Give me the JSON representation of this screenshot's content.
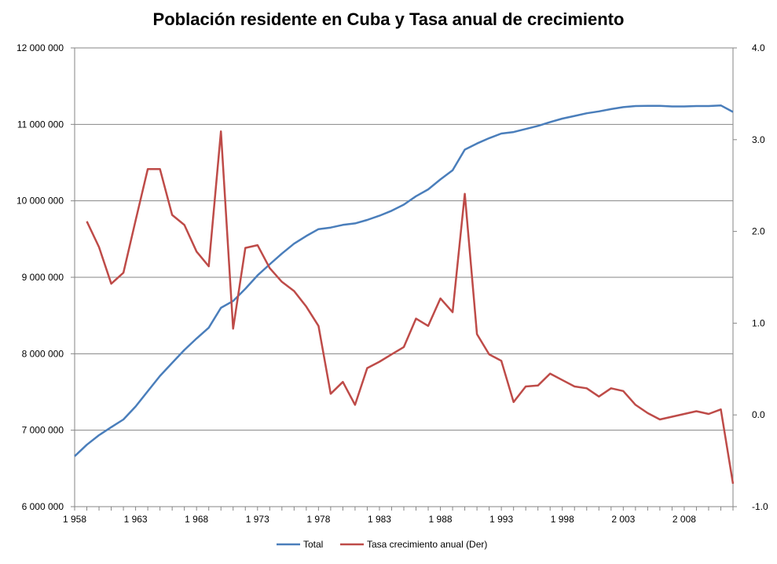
{
  "chart_data": {
    "type": "line",
    "title": "Población residente en Cuba  y Tasa anual de crecimiento",
    "x": [
      1958,
      1959,
      1960,
      1961,
      1962,
      1963,
      1964,
      1965,
      1966,
      1967,
      1968,
      1969,
      1970,
      1971,
      1972,
      1973,
      1974,
      1975,
      1976,
      1977,
      1978,
      1979,
      1980,
      1981,
      1982,
      1983,
      1984,
      1985,
      1986,
      1987,
      1988,
      1989,
      1990,
      1991,
      1992,
      1993,
      1994,
      1995,
      1996,
      1997,
      1998,
      1999,
      2000,
      2001,
      2002,
      2003,
      2004,
      2005,
      2006,
      2007,
      2008,
      2009,
      2010,
      2011,
      2012
    ],
    "xlim": [
      1958,
      2012
    ],
    "xticks": [
      1958,
      1963,
      1968,
      1973,
      1978,
      1983,
      1988,
      1993,
      1998,
      2003,
      2008
    ],
    "x_tick_labels": [
      "1 958",
      "1 963",
      "1 968",
      "1 973",
      "1 978",
      "1 983",
      "1 988",
      "1 993",
      "1 998",
      "2 003",
      "2 008"
    ],
    "y_left": {
      "ylim": [
        6000000,
        12000000
      ],
      "ticks": [
        6000000,
        7000000,
        8000000,
        9000000,
        10000000,
        11000000,
        12000000
      ],
      "tick_labels": [
        "6 000 000",
        "7 000 000",
        "8 000 000",
        "9 000 000",
        "10 000 000",
        "11 000 000",
        "12 000 000"
      ]
    },
    "y_right": {
      "ylim": [
        -1.0,
        4.0
      ],
      "ticks": [
        -1.0,
        0.0,
        1.0,
        2.0,
        3.0,
        4.0
      ],
      "tick_labels": [
        "-1.0",
        "0.0",
        "1.0",
        "2.0",
        "3.0",
        "4.0"
      ]
    },
    "series": [
      {
        "name": "Total",
        "axis": "left",
        "color": "#4a7ebb",
        "x": [
          1958,
          1959,
          1960,
          1961,
          1962,
          1963,
          1964,
          1965,
          1966,
          1967,
          1968,
          1969,
          1970,
          1971,
          1972,
          1973,
          1974,
          1975,
          1976,
          1977,
          1978,
          1979,
          1980,
          1981,
          1982,
          1983,
          1984,
          1985,
          1986,
          1987,
          1988,
          1989,
          1990,
          1991,
          1992,
          1993,
          1994,
          1995,
          1996,
          1997,
          1998,
          1999,
          2000,
          2001,
          2002,
          2003,
          2004,
          2005,
          2006,
          2007,
          2008,
          2009,
          2010,
          2011,
          2012
        ],
        "values": [
          6660000,
          6810000,
          6935000,
          7040000,
          7140000,
          7310000,
          7510000,
          7710000,
          7880000,
          8050000,
          8200000,
          8340000,
          8600000,
          8690000,
          8850000,
          9025000,
          9170000,
          9310000,
          9440000,
          9540000,
          9630000,
          9650000,
          9685000,
          9705000,
          9750000,
          9805000,
          9870000,
          9950000,
          10060000,
          10150000,
          10280000,
          10400000,
          10670000,
          10750000,
          10820000,
          10880000,
          10900000,
          10940000,
          10980000,
          11030000,
          11075000,
          11110000,
          11145000,
          11170000,
          11200000,
          11225000,
          11240000,
          11242000,
          11243000,
          11235000,
          11235000,
          11240000,
          11240000,
          11248000,
          11163000
        ]
      },
      {
        "name": "Tasa crecimiento anual (Der)",
        "axis": "right",
        "color": "#be4b48",
        "x": [
          1959,
          1960,
          1961,
          1962,
          1963,
          1964,
          1965,
          1966,
          1967,
          1968,
          1969,
          1970,
          1971,
          1972,
          1973,
          1974,
          1975,
          1976,
          1977,
          1978,
          1979,
          1980,
          1981,
          1982,
          1983,
          1984,
          1985,
          1986,
          1987,
          1988,
          1989,
          1990,
          1991,
          1992,
          1993,
          1994,
          1995,
          1996,
          1997,
          1998,
          1999,
          2000,
          2001,
          2002,
          2003,
          2004,
          2005,
          2006,
          2007,
          2008,
          2009,
          2010,
          2011,
          2012
        ],
        "values": [
          2.11,
          1.83,
          1.43,
          1.55,
          2.12,
          2.68,
          2.68,
          2.18,
          2.07,
          1.78,
          1.62,
          3.09,
          0.94,
          1.82,
          1.85,
          1.6,
          1.45,
          1.35,
          1.18,
          0.97,
          0.23,
          0.36,
          0.11,
          0.51,
          0.58,
          0.66,
          0.74,
          1.05,
          0.97,
          1.27,
          1.12,
          2.41,
          0.88,
          0.66,
          0.59,
          0.14,
          0.31,
          0.32,
          0.45,
          0.38,
          0.31,
          0.29,
          0.2,
          0.29,
          0.26,
          0.11,
          0.02,
          -0.05,
          -0.02,
          0.01,
          0.04,
          0.01,
          0.06,
          -0.75
        ]
      }
    ],
    "grid": "horizontal",
    "legend_position": "bottom"
  }
}
